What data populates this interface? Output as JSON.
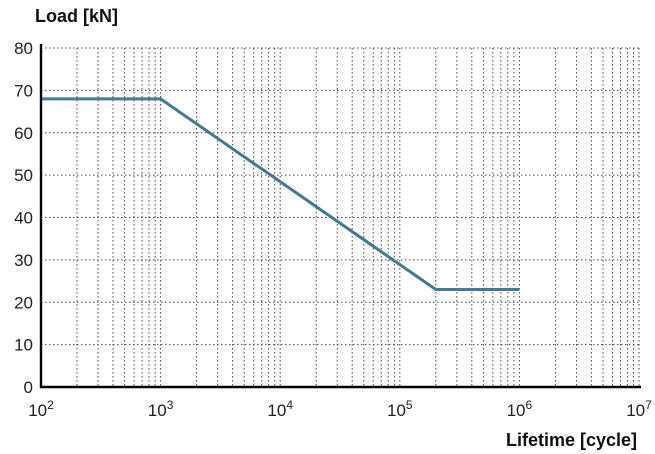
{
  "chart_data": {
    "type": "line",
    "ylabel": "Load [kN]",
    "xlabel": "Lifetime [cycle]",
    "x_scale": "log",
    "xlim": [
      100,
      10000000
    ],
    "ylim": [
      0,
      80
    ],
    "grid": true,
    "x_ticks": [
      {
        "base": "10",
        "exp": "2",
        "value": 100
      },
      {
        "base": "10",
        "exp": "3",
        "value": 1000
      },
      {
        "base": "10",
        "exp": "4",
        "value": 10000
      },
      {
        "base": "10",
        "exp": "5",
        "value": 100000
      },
      {
        "base": "10",
        "exp": "6",
        "value": 1000000
      },
      {
        "base": "10",
        "exp": "7",
        "value": 10000000
      }
    ],
    "y_ticks": [
      "0",
      "10",
      "20",
      "30",
      "40",
      "50",
      "60",
      "70",
      "80"
    ],
    "series": [
      {
        "color": "#46788f",
        "points": [
          {
            "x": 100,
            "y": 68
          },
          {
            "x": 1000,
            "y": 68
          },
          {
            "x": 200000,
            "y": 23
          },
          {
            "x": 1000000,
            "y": 23
          }
        ]
      }
    ]
  }
}
